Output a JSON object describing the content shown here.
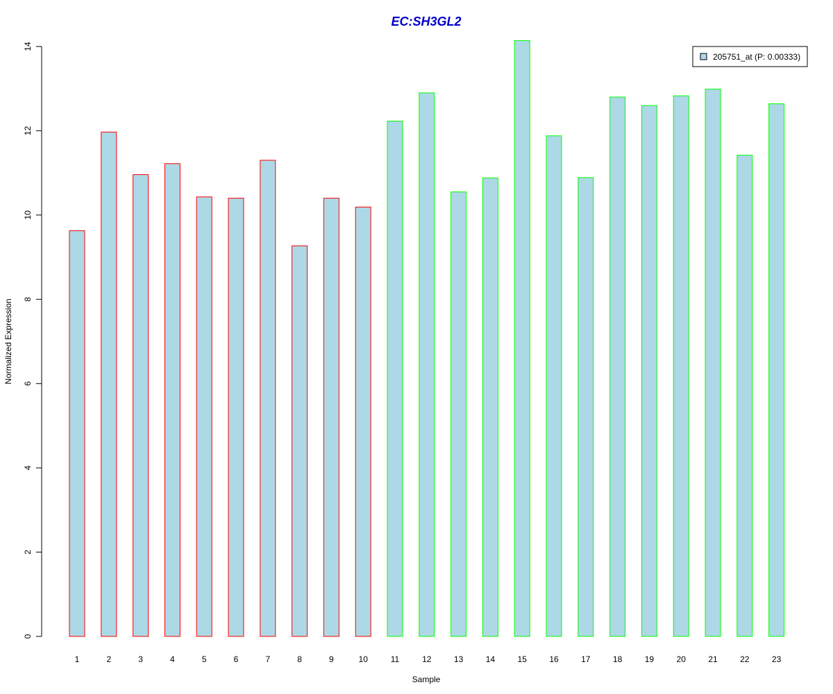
{
  "chart_data": {
    "type": "bar",
    "title": "EC:SH3GL2",
    "xlabel": "Sample",
    "ylabel": "Normalized Expression",
    "categories": [
      "1",
      "2",
      "3",
      "4",
      "5",
      "6",
      "7",
      "8",
      "9",
      "10",
      "11",
      "12",
      "13",
      "14",
      "15",
      "16",
      "17",
      "18",
      "19",
      "20",
      "21",
      "22",
      "23"
    ],
    "values": [
      9.63,
      11.97,
      10.96,
      11.22,
      10.43,
      10.4,
      11.3,
      9.27,
      10.4,
      10.19,
      12.23,
      12.9,
      10.55,
      10.88,
      14.14,
      11.88,
      10.89,
      12.8,
      12.6,
      12.83,
      12.99,
      11.42,
      12.64
    ],
    "groups": [
      "red",
      "red",
      "red",
      "red",
      "red",
      "red",
      "red",
      "red",
      "red",
      "red",
      "green",
      "green",
      "green",
      "green",
      "green",
      "green",
      "green",
      "green",
      "green",
      "green",
      "green",
      "green",
      "green"
    ],
    "yticks": [
      "0",
      "2",
      "4",
      "6",
      "8",
      "10",
      "12",
      "14"
    ],
    "ylim": [
      0,
      14
    ],
    "legend": {
      "label": "205751_at (P: 0.00333)",
      "position": "top-right"
    },
    "grid": false
  },
  "colors": {
    "title": "#0000CC",
    "bar_fill": "#ADD8E6",
    "red_border": "#FF0000",
    "green_border": "#00FF00",
    "axis": "#000000",
    "background": "#FFFFFF"
  }
}
